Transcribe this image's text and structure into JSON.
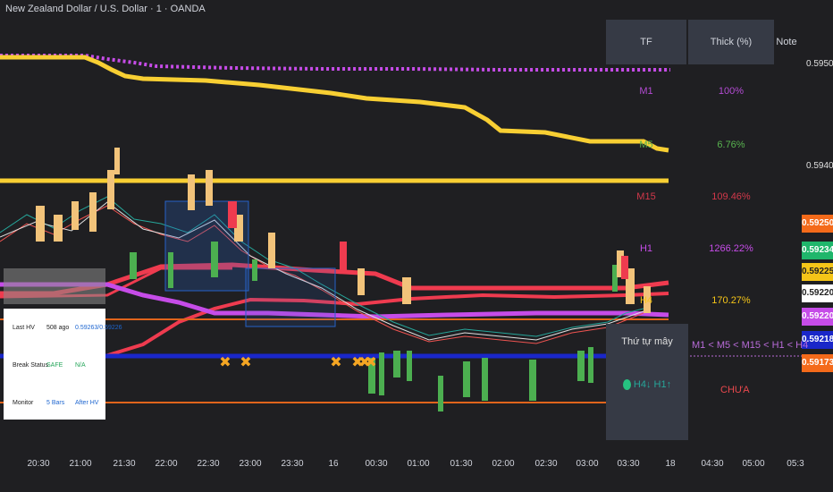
{
  "header": {
    "title": "New Zealand Dollar / U.S. Dollar · 1 · OANDA"
  },
  "chart_data": {
    "type": "line",
    "price_axis": [
      "0.59500",
      "0.59400"
    ],
    "price_tags": [
      {
        "value": "0.59250",
        "bg": "#f46a1a",
        "fg": "#ffffff"
      },
      {
        "value": "0.59234",
        "bg": "#1fb66b",
        "fg": "#ffffff"
      },
      {
        "value": "0.59225",
        "bg": "#f5c518",
        "fg": "#222222"
      },
      {
        "value": "0.59220",
        "bg": "#ffffff",
        "fg": "#222222"
      },
      {
        "value": "0.59220",
        "bg": "#c64ce8",
        "fg": "#ffffff"
      },
      {
        "value": "0.59218",
        "bg": "#1a27c9",
        "fg": "#ffffff"
      },
      {
        "value": "0.59173",
        "bg": "#f46a1a",
        "fg": "#ffffff"
      }
    ],
    "time_labels": [
      "20:30",
      "21:00",
      "21:30",
      "22:00",
      "22:30",
      "23:00",
      "23:30",
      "16",
      "00:30",
      "01:00",
      "01:30",
      "02:00",
      "02:30",
      "03:00",
      "03:30",
      "18",
      "04:30",
      "05:00",
      "05:3"
    ],
    "colors": {
      "yellow": "#f8cf33",
      "purple": "#c64ce8",
      "red": "#ef3b4f",
      "blue": "#1a27c9",
      "orange": "#e0641c",
      "green": "#4caf50"
    }
  },
  "tf_table": {
    "headers": [
      "TF",
      "Thick (%)",
      "Note"
    ],
    "rows": [
      {
        "tf": "M1",
        "thick": "100%",
        "color": "#b34bd3"
      },
      {
        "tf": "M5",
        "thick": "6.76%",
        "color": "#58b34f"
      },
      {
        "tf": "M15",
        "thick": "109.46%",
        "color": "#d2384a"
      },
      {
        "tf": "H1",
        "thick": "1266.22%",
        "color": "#c64ce8"
      },
      {
        "tf": "H4",
        "thick": "170.27%",
        "color": "#f5c518"
      }
    ]
  },
  "info_panel": {
    "rows": [
      {
        "label": "Last HV",
        "v1": "508 ago",
        "v2": "0.59263/0.59226",
        "c1": "#222222",
        "c2": "#1e66d0"
      },
      {
        "label": "Break Status",
        "v1": "SAFE",
        "v2": "N/A",
        "c1": "#26a65b",
        "c2": "#26a65b"
      },
      {
        "label": "Monitor",
        "v1": "5 Bars",
        "v2": "After HV",
        "c1": "#1e66d0",
        "c2": "#1e66d0"
      }
    ]
  },
  "order_panel": {
    "title": "Thứ tự mây",
    "state": "H4↓ H1↑",
    "formula": "M1 < M5 < M15 < H1 < H4",
    "status": "CHƯA"
  }
}
